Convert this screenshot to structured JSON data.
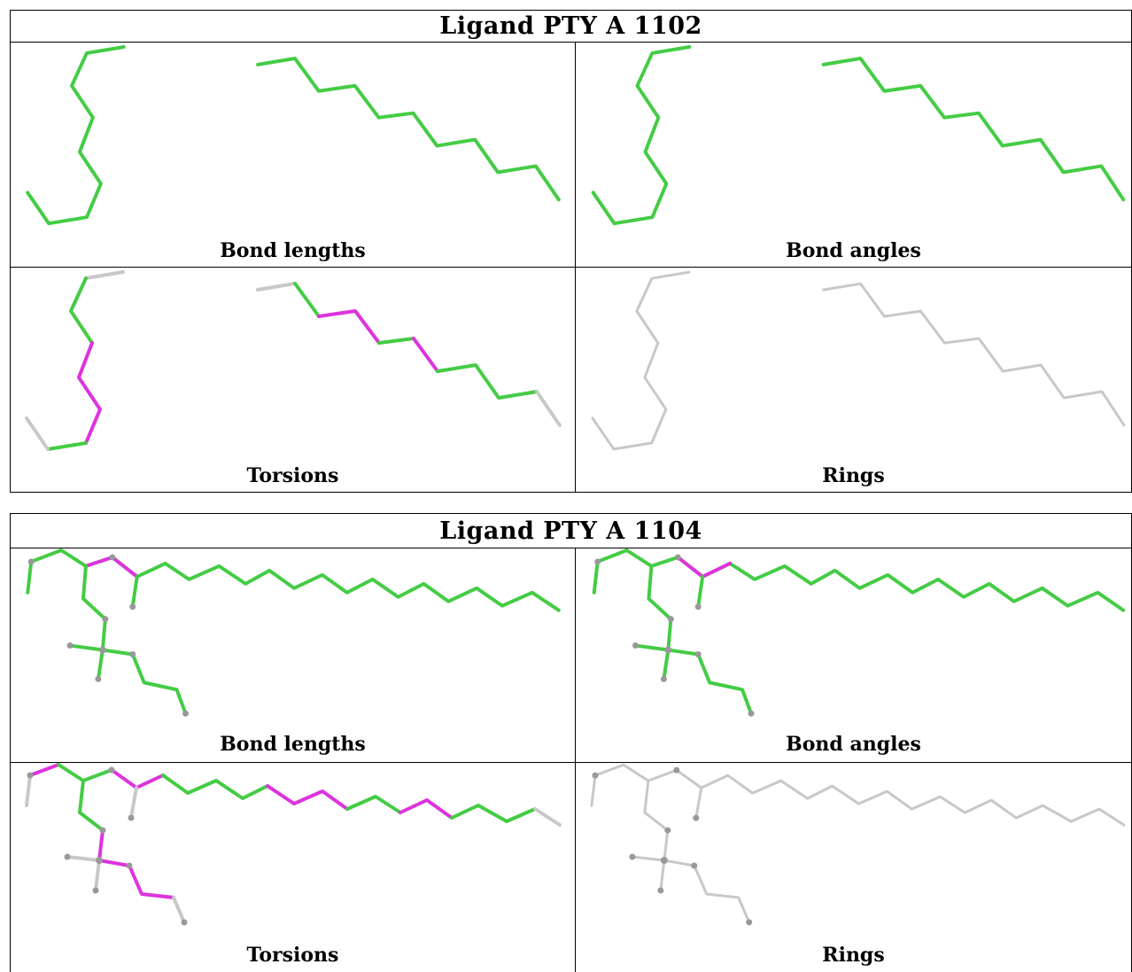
{
  "colors": {
    "ok": "#44cc44",
    "outlier": "#dd33dd",
    "none": "#c8c8c8",
    "atom": "#999999"
  },
  "ligands": [
    {
      "title": "Ligand PTY A 1102",
      "panels": [
        {
          "caption": "Bond lengths"
        },
        {
          "caption": "Bond angles"
        },
        {
          "caption": "Torsions"
        },
        {
          "caption": "Rings"
        }
      ]
    },
    {
      "title": "Ligand PTY A 1104",
      "panels": [
        {
          "caption": "Bond lengths"
        },
        {
          "caption": "Bond angles"
        },
        {
          "caption": "Torsions"
        },
        {
          "caption": "Rings"
        }
      ]
    }
  ]
}
